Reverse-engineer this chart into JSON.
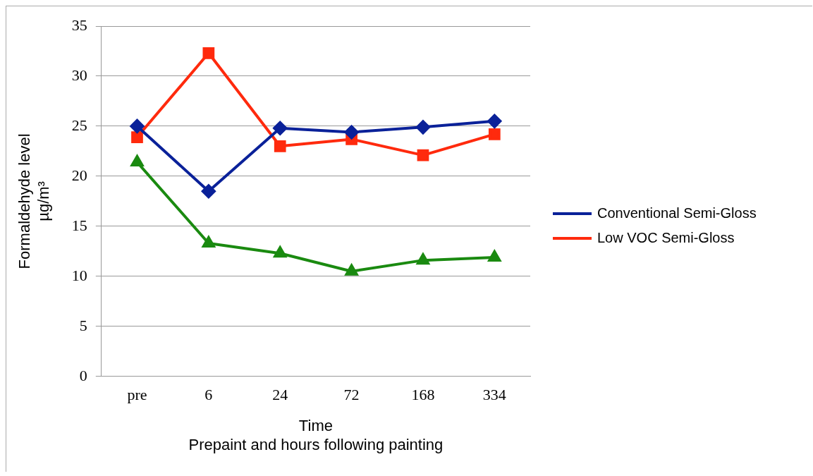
{
  "chart_data": {
    "type": "line",
    "xlabel": "Time\nPrepaint and hours following painting",
    "ylabel": "Formaldehyde level\nµg/m³",
    "categories": [
      "pre",
      "6",
      "24",
      "72",
      "168",
      "334"
    ],
    "ylim": [
      0,
      35
    ],
    "yticks": [
      0,
      5,
      10,
      15,
      20,
      25,
      30,
      35
    ],
    "grid": "y",
    "legend": "right",
    "series": [
      {
        "name": "Conventional Semi-Gloss",
        "color": "#0a2199",
        "marker": "diamond",
        "values": [
          25.0,
          18.5,
          24.8,
          24.4,
          24.9,
          25.5
        ]
      },
      {
        "name": "Low VOC Semi-Gloss",
        "color": "#ff2a0d",
        "marker": "square",
        "values": [
          23.9,
          32.3,
          23.0,
          23.7,
          22.1,
          24.2
        ]
      },
      {
        "color": "#1a8a10",
        "marker": "triangle",
        "values": [
          21.4,
          13.3,
          12.3,
          10.5,
          11.6,
          11.9
        ]
      }
    ]
  }
}
